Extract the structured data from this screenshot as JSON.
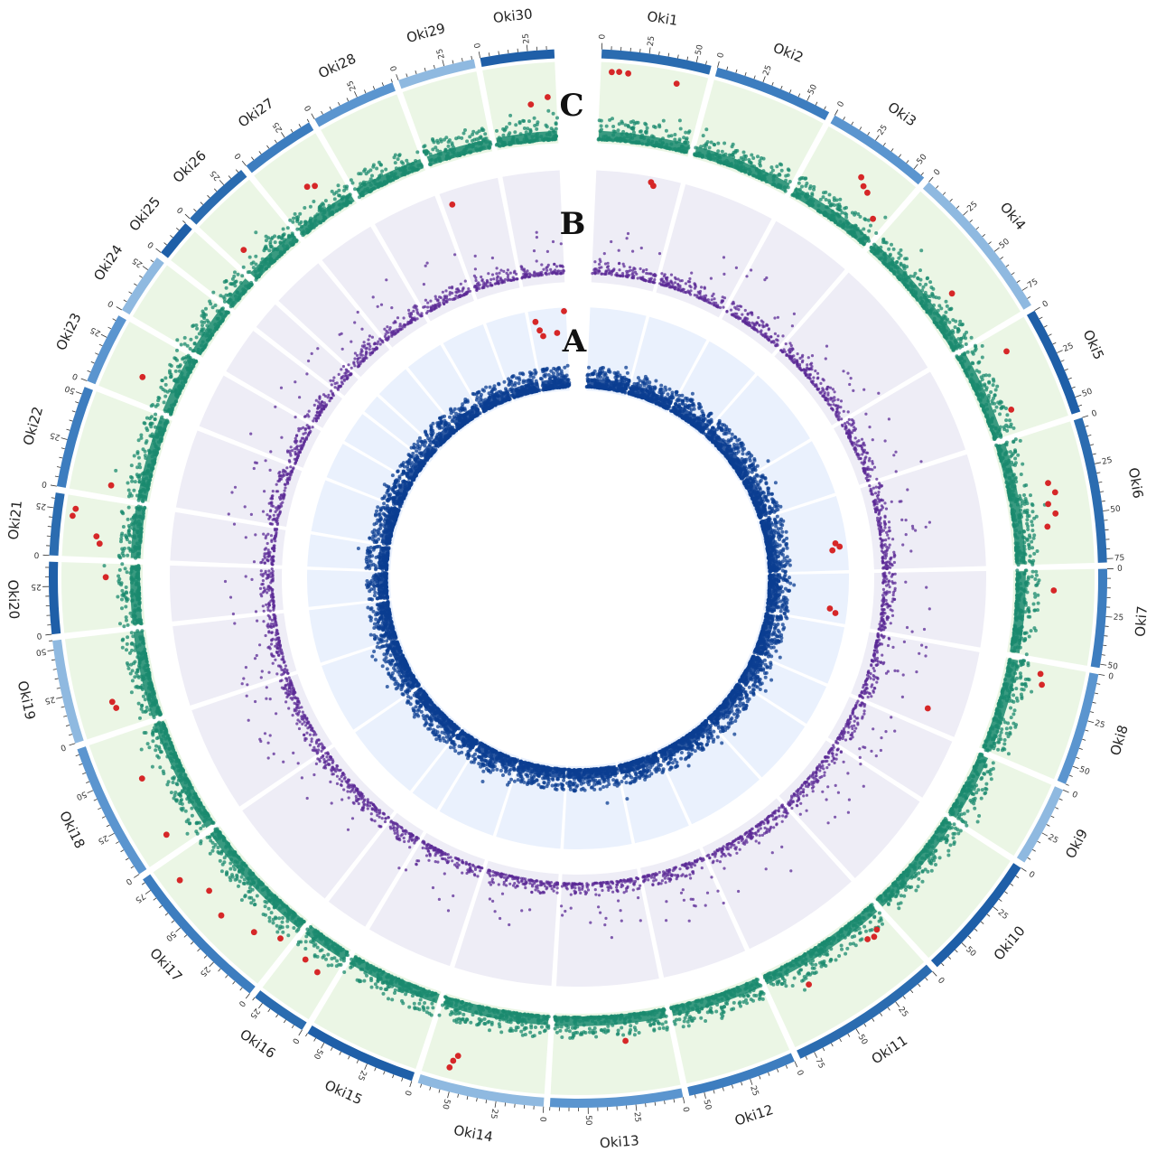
{
  "chart_data": {
    "type": "scatter",
    "title": "",
    "chromosomes": [
      {
        "name": "Oki1",
        "length": 58
      },
      {
        "name": "Oki2",
        "length": 63
      },
      {
        "name": "Oki3",
        "length": 57
      },
      {
        "name": "Oki4",
        "length": 84
      },
      {
        "name": "Oki5",
        "length": 58
      },
      {
        "name": "Oki6",
        "length": 77
      },
      {
        "name": "Oki7",
        "length": 52
      },
      {
        "name": "Oki8",
        "length": 60
      },
      {
        "name": "Oki9",
        "length": 43
      },
      {
        "name": "Oki10",
        "length": 68
      },
      {
        "name": "Oki11",
        "length": 83
      },
      {
        "name": "Oki12",
        "length": 58
      },
      {
        "name": "Oki13",
        "length": 70
      },
      {
        "name": "Oki14",
        "length": 67
      },
      {
        "name": "Oki15",
        "length": 60
      },
      {
        "name": "Oki16",
        "length": 30
      },
      {
        "name": "Oki17",
        "length": 82
      },
      {
        "name": "Oki18",
        "length": 73
      },
      {
        "name": "Oki19",
        "length": 55
      },
      {
        "name": "Oki20",
        "length": 38
      },
      {
        "name": "Oki21",
        "length": 33
      },
      {
        "name": "Oki22",
        "length": 54
      },
      {
        "name": "Oki23",
        "length": 38
      },
      {
        "name": "Oki24",
        "length": 33
      },
      {
        "name": "Oki25",
        "length": 20
      },
      {
        "name": "Oki26",
        "length": 37
      },
      {
        "name": "Oki27",
        "length": 40
      },
      {
        "name": "Oki28",
        "length": 45
      },
      {
        "name": "Oki29",
        "length": 41
      },
      {
        "name": "Oki30",
        "length": 39
      }
    ],
    "ticks": {
      "major": [
        0,
        25,
        50,
        75
      ],
      "minor_step": 5
    },
    "ideogram_colors": [
      "#2b6cb0",
      "#3d7dbf",
      "#5b95cf",
      "#8fb9e0",
      "#1f5fa8"
    ],
    "tracks": [
      {
        "label": "A",
        "name": "",
        "point_color": "#0b3d91",
        "significant_color": "#d62728",
        "background": "#eaf1fd",
        "significant_hits": [
          {
            "chrom": "Oki6",
            "pos": 48,
            "score": 0.9
          },
          {
            "chrom": "Oki6",
            "pos": 52,
            "score": 0.95
          },
          {
            "chrom": "Oki6",
            "pos": 55,
            "score": 0.85
          },
          {
            "chrom": "Oki7",
            "pos": 38,
            "score": 0.82
          },
          {
            "chrom": "Oki7",
            "pos": 42,
            "score": 0.9
          },
          {
            "chrom": "Oki30",
            "pos": 6,
            "score": 0.9
          },
          {
            "chrom": "Oki30",
            "pos": 9,
            "score": 0.78
          },
          {
            "chrom": "Oki30",
            "pos": 12,
            "score": 0.7
          },
          {
            "chrom": "Oki30",
            "pos": 28,
            "score": 0.72
          },
          {
            "chrom": "Oki30",
            "pos": 37,
            "score": 1.0
          }
        ]
      },
      {
        "label": "B",
        "name": "",
        "point_color": "#5b2a96",
        "significant_color": "#d62728",
        "background": "#eeedf6",
        "significant_hits": [
          {
            "chrom": "Oki1",
            "pos": 38,
            "score": 0.98
          },
          {
            "chrom": "Oki1",
            "pos": 40,
            "score": 0.95
          },
          {
            "chrom": "Oki8",
            "pos": 48,
            "score": 0.7
          },
          {
            "chrom": "Oki29",
            "pos": 6,
            "score": 0.9
          }
        ]
      },
      {
        "label": "C",
        "name": "",
        "point_color": "#1a8a6e",
        "significant_color": "#d62728",
        "background": "#ebf6e5",
        "significant_hits": [
          {
            "chrom": "Oki1",
            "pos": 6,
            "score": 0.92
          },
          {
            "chrom": "Oki1",
            "pos": 10,
            "score": 0.93
          },
          {
            "chrom": "Oki1",
            "pos": 15,
            "score": 0.92
          },
          {
            "chrom": "Oki1",
            "pos": 42,
            "score": 0.88
          },
          {
            "chrom": "Oki3",
            "pos": 30,
            "score": 0.7
          },
          {
            "chrom": "Oki3",
            "pos": 34,
            "score": 0.62
          },
          {
            "chrom": "Oki3",
            "pos": 38,
            "score": 0.58
          },
          {
            "chrom": "Oki3",
            "pos": 50,
            "score": 0.35
          },
          {
            "chrom": "Oki4",
            "pos": 54,
            "score": 0.42
          },
          {
            "chrom": "Oki5",
            "pos": 12,
            "score": 0.62
          },
          {
            "chrom": "Oki5",
            "pos": 44,
            "score": 0.35
          },
          {
            "chrom": "Oki6",
            "pos": 30,
            "score": 0.55
          },
          {
            "chrom": "Oki6",
            "pos": 36,
            "score": 0.62
          },
          {
            "chrom": "Oki6",
            "pos": 42,
            "score": 0.5
          },
          {
            "chrom": "Oki6",
            "pos": 48,
            "score": 0.58
          },
          {
            "chrom": "Oki6",
            "pos": 55,
            "score": 0.45
          },
          {
            "chrom": "Oki7",
            "pos": 12,
            "score": 0.5
          },
          {
            "chrom": "Oki8",
            "pos": 6,
            "score": 0.45
          },
          {
            "chrom": "Oki8",
            "pos": 12,
            "score": 0.5
          },
          {
            "chrom": "Oki11",
            "pos": 8,
            "score": 0.3
          },
          {
            "chrom": "Oki11",
            "pos": 12,
            "score": 0.35
          },
          {
            "chrom": "Oki11",
            "pos": 16,
            "score": 0.32
          },
          {
            "chrom": "Oki11",
            "pos": 60,
            "score": 0.38
          },
          {
            "chrom": "Oki13",
            "pos": 27,
            "score": 0.35
          },
          {
            "chrom": "Oki14",
            "pos": 50,
            "score": 0.72
          },
          {
            "chrom": "Oki14",
            "pos": 52,
            "score": 0.8
          },
          {
            "chrom": "Oki14",
            "pos": 53,
            "score": 0.9
          },
          {
            "chrom": "Oki16",
            "pos": 10,
            "score": 0.45
          },
          {
            "chrom": "Oki16",
            "pos": 20,
            "score": 0.4
          },
          {
            "chrom": "Oki17",
            "pos": 6,
            "score": 0.38
          },
          {
            "chrom": "Oki17",
            "pos": 20,
            "score": 0.55
          },
          {
            "chrom": "Oki17",
            "pos": 40,
            "score": 0.7
          },
          {
            "chrom": "Oki17",
            "pos": 55,
            "score": 0.6
          },
          {
            "chrom": "Oki17",
            "pos": 70,
            "score": 0.82
          },
          {
            "chrom": "Oki18",
            "pos": 10,
            "score": 0.62
          },
          {
            "chrom": "Oki18",
            "pos": 45,
            "score": 0.55
          },
          {
            "chrom": "Oki19",
            "pos": 12,
            "score": 0.55
          },
          {
            "chrom": "Oki19",
            "pos": 16,
            "score": 0.58
          },
          {
            "chrom": "Oki20",
            "pos": 30,
            "score": 0.45
          },
          {
            "chrom": "Oki21",
            "pos": 8,
            "score": 0.55
          },
          {
            "chrom": "Oki21",
            "pos": 12,
            "score": 0.6
          },
          {
            "chrom": "Oki21",
            "pos": 22,
            "score": 0.95
          },
          {
            "chrom": "Oki21",
            "pos": 26,
            "score": 0.92
          },
          {
            "chrom": "Oki22",
            "pos": 6,
            "score": 0.5
          },
          {
            "chrom": "Oki23",
            "pos": 14,
            "score": 0.55
          },
          {
            "chrom": "Oki26",
            "pos": 8,
            "score": 0.4
          },
          {
            "chrom": "Oki27",
            "pos": 20,
            "score": 0.5
          },
          {
            "chrom": "Oki27",
            "pos": 24,
            "score": 0.45
          },
          {
            "chrom": "Oki30",
            "pos": 24,
            "score": 0.5
          },
          {
            "chrom": "Oki30",
            "pos": 34,
            "score": 0.58
          }
        ]
      }
    ],
    "track_letters": [
      "A",
      "B",
      "C"
    ],
    "grid": false,
    "legend": "none"
  }
}
